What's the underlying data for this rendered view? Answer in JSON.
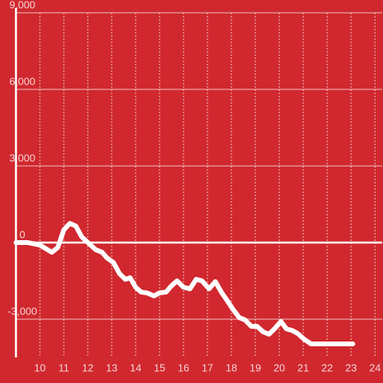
{
  "chart_data": {
    "type": "line",
    "x": [
      9,
      9.5,
      10,
      10.5,
      10.75,
      11,
      11.25,
      11.5,
      11.75,
      12.33,
      12.6,
      12.8,
      13.07,
      13.33,
      13.57,
      13.77,
      14,
      14.23,
      14.47,
      14.77,
      15,
      15.27,
      15.5,
      15.73,
      16,
      16.27,
      16.53,
      16.77,
      17.07,
      17.33,
      17.6,
      17.83,
      18.07,
      18.33,
      18.57,
      18.83,
      19.07,
      19.33,
      19.57,
      19.8,
      20.07,
      20.3,
      20.53,
      20.77,
      21.03,
      21.33,
      23.07
    ],
    "series": [
      {
        "color": "#ffffff",
        "values": [
          0,
          0,
          -100,
          -380,
          -190,
          500,
          750,
          650,
          220,
          -280,
          -380,
          -600,
          -780,
          -1220,
          -1440,
          -1380,
          -1750,
          -1940,
          -1970,
          -2090,
          -1970,
          -1940,
          -1690,
          -1500,
          -1750,
          -1810,
          -1440,
          -1500,
          -1810,
          -1530,
          -1970,
          -2280,
          -2620,
          -2940,
          -3030,
          -3280,
          -3280,
          -3500,
          -3590,
          -3380,
          -3090,
          -3380,
          -3440,
          -3560,
          -3780,
          -3970,
          -3970
        ]
      }
    ],
    "xlim": [
      9,
      24.3
    ],
    "xticks": [
      10,
      11,
      12,
      13,
      14,
      15,
      16,
      17,
      18,
      19,
      20,
      21,
      22,
      23,
      24
    ],
    "ylim": [
      -4500,
      9000
    ],
    "yticks": [
      {
        "value": -3000,
        "label": "-3,000"
      },
      0,
      {
        "value": 3000,
        "label": "3,000"
      },
      {
        "value": 6000,
        "label": "6,000"
      },
      {
        "value": 9000,
        "label": "9,000"
      }
    ],
    "grid": true
  }
}
